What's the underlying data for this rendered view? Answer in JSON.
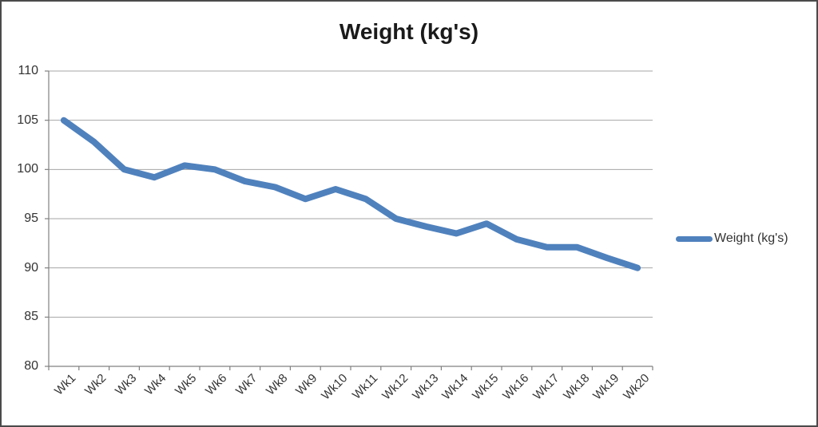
{
  "title": "Weight (kg's)",
  "legend": {
    "label": "Weight (kg's)"
  },
  "colors": {
    "line": "#4F81BD",
    "gridline": "#A6A6A6",
    "axis": "#808080",
    "border": "#4A4A4A",
    "title_text": "#1A1A1A",
    "label_text": "#333333"
  },
  "chart_data": {
    "type": "line",
    "title": "Weight (kg's)",
    "categories": [
      "Wk1",
      "Wk2",
      "Wk3",
      "Wk4",
      "Wk5",
      "Wk6",
      "Wk7",
      "Wk8",
      "Wk9",
      "Wk10",
      "Wk11",
      "Wk12",
      "Wk13",
      "Wk14",
      "Wk15",
      "Wk16",
      "Wk17",
      "Wk18",
      "Wk19",
      "Wk20"
    ],
    "series": [
      {
        "name": "Weight (kg's)",
        "values": [
          105,
          102.8,
          100,
          99.2,
          100.4,
          100,
          98.8,
          98.2,
          97,
          98,
          97,
          95,
          94.2,
          93.5,
          94.5,
          92.9,
          92.1,
          92.1,
          91,
          90
        ]
      }
    ],
    "xlabel": "",
    "ylabel": "",
    "ylim": [
      80,
      110
    ],
    "yticks": [
      80,
      85,
      90,
      95,
      100,
      105,
      110
    ],
    "grid": true,
    "legend_position": "right"
  }
}
